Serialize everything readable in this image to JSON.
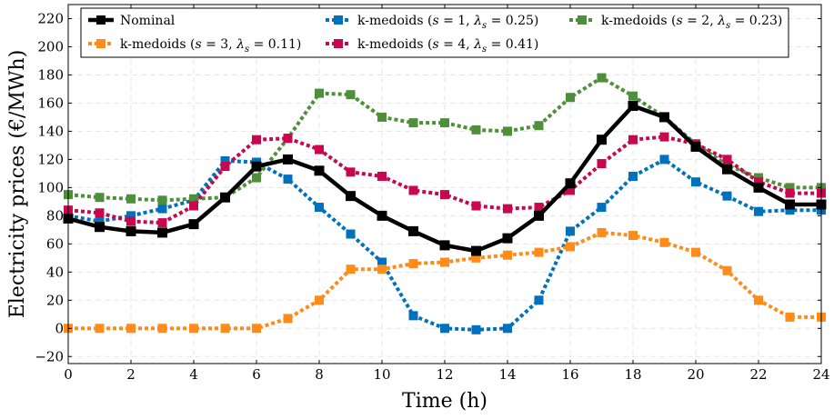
{
  "chart_data": {
    "type": "line",
    "xlabel": "Time (h)",
    "ylabel": "Electricity prices (€/MWh)",
    "xlim": [
      0,
      24
    ],
    "ylim": [
      -25,
      230
    ],
    "x_ticks": [
      0,
      2,
      4,
      6,
      8,
      10,
      12,
      14,
      16,
      18,
      20,
      22,
      24
    ],
    "y_ticks": [
      -20,
      0,
      20,
      40,
      60,
      80,
      100,
      120,
      140,
      160,
      180,
      200,
      220
    ],
    "grid": true,
    "legend_position": "top",
    "x": [
      0,
      1,
      2,
      3,
      4,
      5,
      6,
      7,
      8,
      9,
      10,
      11,
      12,
      13,
      14,
      15,
      16,
      17,
      18,
      19,
      20,
      21,
      22,
      23,
      24
    ],
    "series": [
      {
        "name": "Nominal",
        "color": "#000000",
        "style": "solid",
        "values": [
          78,
          72,
          69,
          68,
          74,
          93,
          115,
          120,
          112,
          94,
          80,
          69,
          59,
          55,
          64,
          80,
          103,
          134,
          158,
          150,
          129,
          113,
          100,
          88,
          88
        ]
      },
      {
        "name": "k-medoids (s = 1, λs = 0.25)",
        "color": "#0072bd",
        "style": "dotted",
        "values": [
          80,
          76,
          80,
          85,
          91,
          119,
          118,
          106,
          86,
          67,
          47,
          9,
          0,
          -1,
          0,
          20,
          69,
          86,
          108,
          120,
          104,
          94,
          83,
          84,
          84
        ]
      },
      {
        "name": "k-medoids (s = 2, λs = 0.23)",
        "color": "#4d8f3a",
        "style": "dotted",
        "values": [
          95,
          93,
          92,
          91,
          92,
          93,
          107,
          135,
          167,
          166,
          150,
          146,
          146,
          141,
          140,
          144,
          164,
          178,
          165,
          150,
          131,
          116,
          107,
          100,
          100
        ]
      },
      {
        "name": "k-medoids (s = 3, λs = 0.11)",
        "color": "#ff8c1a",
        "style": "dotted",
        "values": [
          0,
          0,
          0,
          0,
          0,
          0,
          0,
          7,
          20,
          42,
          42,
          46,
          47,
          50,
          52,
          54,
          58,
          68,
          66,
          61,
          54,
          41,
          20,
          8,
          8
        ]
      },
      {
        "name": "k-medoids (s = 4, λs = 0.41)",
        "color": "#c7084f",
        "style": "dotted",
        "values": [
          84,
          82,
          76,
          75,
          87,
          115,
          134,
          135,
          127,
          111,
          108,
          98,
          95,
          87,
          85,
          86,
          98,
          117,
          134,
          136,
          131,
          120,
          104,
          96,
          96
        ]
      }
    ]
  },
  "legend": [
    {
      "prefix": "Nominal",
      "s": "",
      "lambda": ""
    },
    {
      "prefix": "k-medoids (",
      "s": "1",
      "lambda": "0.25"
    },
    {
      "prefix": "k-medoids (",
      "s": "2",
      "lambda": "0.23"
    },
    {
      "prefix": "k-medoids (",
      "s": "3",
      "lambda": "0.11"
    },
    {
      "prefix": "k-medoids (",
      "s": "4",
      "lambda": "0.41"
    }
  ]
}
